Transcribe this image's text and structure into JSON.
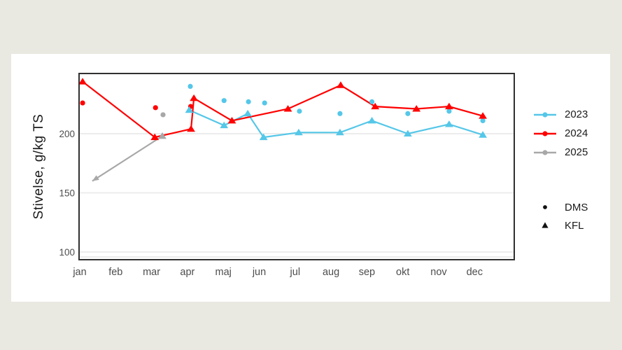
{
  "figure": {
    "ylabel": "Stivelse, g/kg TS"
  },
  "chart_data": {
    "type": "line",
    "title": "",
    "xlabel": "",
    "ylabel": "Stivelse, g/kg TS",
    "x_categories": [
      "jan",
      "feb",
      "mar",
      "apr",
      "maj",
      "jun",
      "jul",
      "aug",
      "sep",
      "okt",
      "nov",
      "dec"
    ],
    "x_encoding": "fractional month index, jan=0 .. dec=11",
    "ylim": [
      93,
      251
    ],
    "y_gridlines": [
      100,
      150,
      200
    ],
    "grid": "on",
    "legend_position": "right",
    "text_color_axis": "#4D4D4D",
    "series": [
      {
        "name": "2023",
        "color": "#55C7E8",
        "line_marker": "triangle",
        "line_points": [
          [
            3.05,
            220
          ],
          [
            4.02,
            207
          ],
          [
            4.68,
            217
          ],
          [
            5.12,
            197
          ],
          [
            6.1,
            201
          ],
          [
            7.25,
            201
          ],
          [
            8.14,
            211
          ],
          [
            9.14,
            200
          ],
          [
            10.29,
            208
          ],
          [
            11.23,
            199
          ]
        ],
        "scatter_marker": "circle",
        "scatter_points": [
          [
            3.08,
            240
          ],
          [
            4.02,
            228
          ],
          [
            4.7,
            227
          ],
          [
            5.15,
            226
          ],
          [
            6.12,
            219
          ],
          [
            7.25,
            217
          ],
          [
            8.14,
            227
          ],
          [
            9.14,
            217
          ],
          [
            10.29,
            219
          ],
          [
            11.23,
            211
          ]
        ]
      },
      {
        "name": "2024",
        "color": "#FF0000",
        "line_marker": "triangle",
        "line_points": [
          [
            0.08,
            244
          ],
          [
            2.09,
            197
          ],
          [
            3.1,
            204
          ],
          [
            3.18,
            230
          ],
          [
            4.24,
            211
          ],
          [
            5.8,
            221
          ],
          [
            7.27,
            241
          ],
          [
            8.23,
            223
          ],
          [
            9.38,
            221
          ],
          [
            10.29,
            223
          ],
          [
            11.23,
            215
          ]
        ],
        "scatter_marker": "circle",
        "scatter_points": [
          [
            0.08,
            226
          ],
          [
            2.11,
            222
          ],
          [
            3.09,
            223
          ]
        ]
      },
      {
        "name": "2025",
        "color": "#A8A8A8",
        "line_marker": "triangle",
        "arrow_at_line_start": true,
        "line_points": [
          [
            0.35,
            160
          ],
          [
            2.3,
            198
          ]
        ],
        "marker_points": [
          [
            2.3,
            198
          ]
        ],
        "scatter_marker": "circle",
        "scatter_points": [
          [
            2.32,
            216
          ]
        ]
      }
    ],
    "shape_legend": [
      {
        "label": "DMS",
        "shape": "circle"
      },
      {
        "label": "KFL",
        "shape": "triangle"
      }
    ]
  }
}
